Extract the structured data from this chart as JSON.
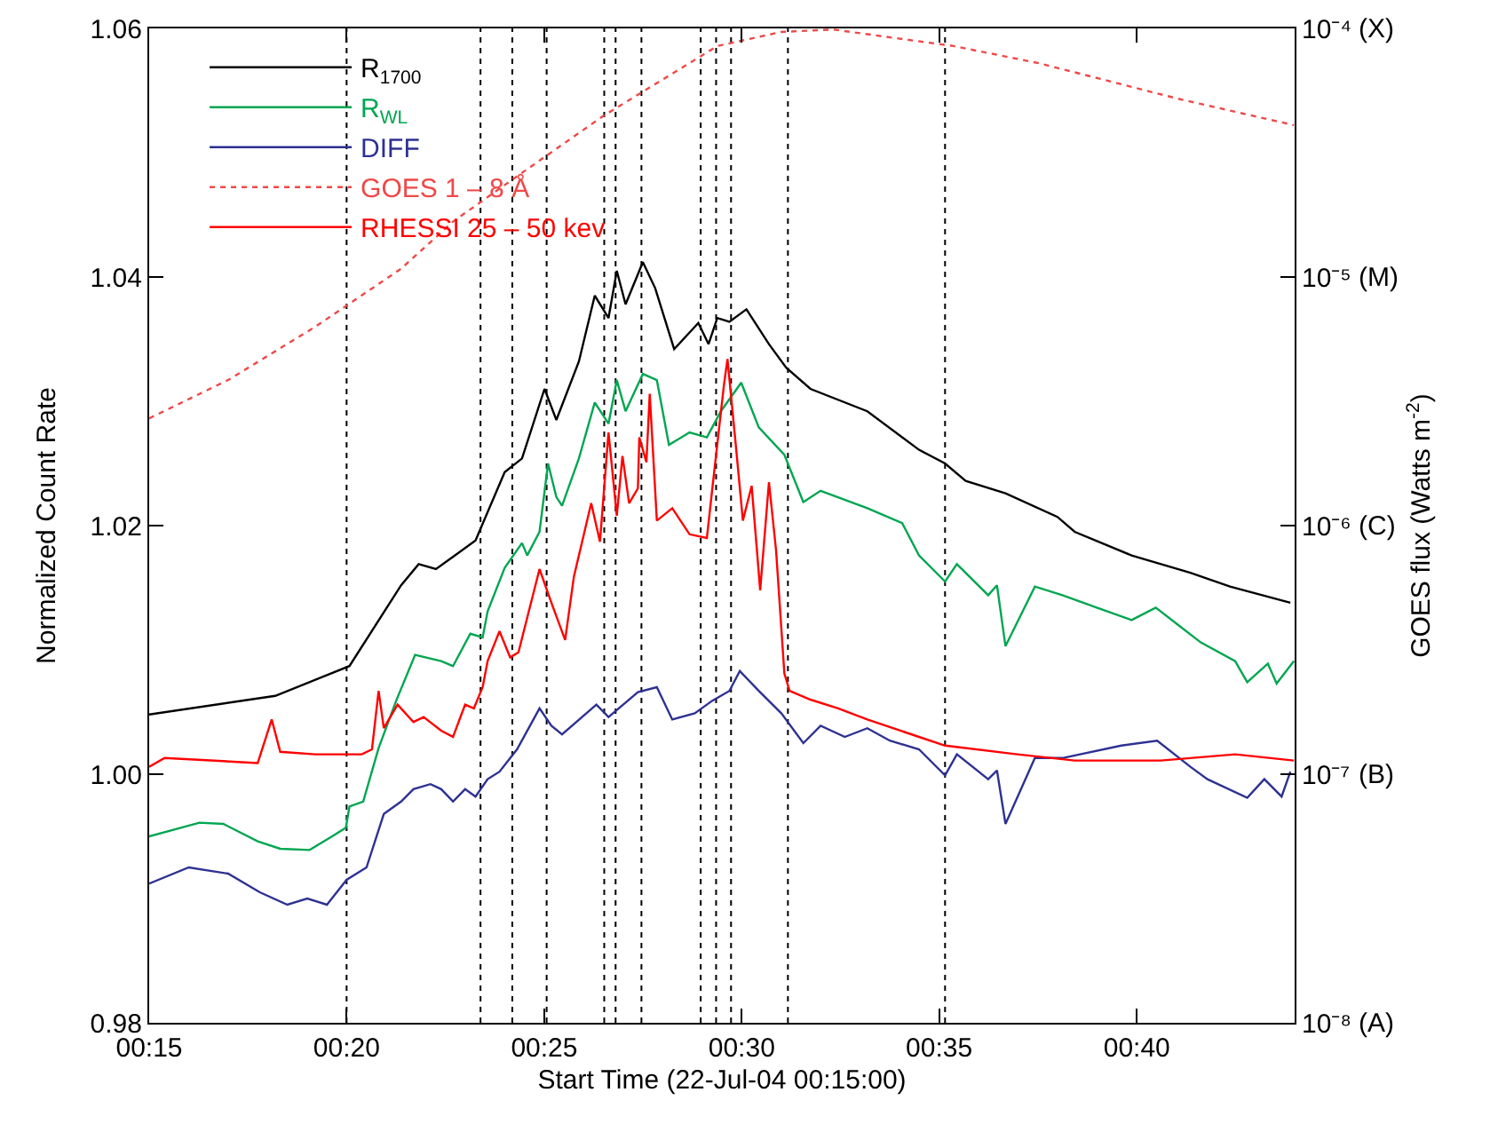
{
  "chart_data": {
    "type": "line",
    "xlabel": "Start Time (22-Jul-04 00:15:00)",
    "ylabel": "Normalized Count Rate",
    "y2label": "GOES flux (Watts m$^{-2}$)",
    "xlim": [
      0.25,
      0.7333
    ],
    "xticks": [
      {
        "value": 0.25,
        "label": "00:15"
      },
      {
        "value": 0.3333,
        "label": "00:20"
      },
      {
        "value": 0.4167,
        "label": "00:25"
      },
      {
        "value": 0.5,
        "label": "00:30"
      },
      {
        "value": 0.5833,
        "label": "00:35"
      },
      {
        "value": 0.6667,
        "label": "00:40"
      }
    ],
    "ylim": [
      0.98,
      1.06
    ],
    "yticks": [
      0.98,
      {
        "value": 1.0,
        "label": "1.00"
      },
      1.02,
      1.04,
      1.06
    ],
    "y2lim": [
      1e-08,
      0.0001
    ],
    "y2ticks": [
      {
        "value": 1e-08,
        "label": "10⁻⁸"
      },
      {
        "value": 1e-07,
        "label": "10⁻⁷"
      },
      {
        "value": 1e-06,
        "label": "10⁻⁶"
      },
      {
        "value": 1e-05,
        "label": "10⁻⁵"
      },
      {
        "value": 0.0001,
        "label": "10⁻⁴"
      }
    ],
    "annotations": [
      "(A)",
      "(B)",
      "(C)",
      "(M)",
      "(X)"
    ],
    "log": "y2",
    "grid": false,
    "legend": "top left",
    "marker": "none",
    "series": [
      {
        "name": "R$_{1700}$",
        "color": "#000000",
        "line_style": "solid",
        "x": [
          0.25,
          0.3032,
          0.3345,
          0.3563,
          0.3637,
          0.371,
          0.3877,
          0.4,
          0.4073,
          0.4168,
          0.4218,
          0.4313,
          0.438,
          0.4438,
          0.4473,
          0.451,
          0.4583,
          0.4635,
          0.4715,
          0.4817,
          0.486,
          0.4897,
          0.4948,
          0.502,
          0.5115,
          0.5188,
          0.529,
          0.553,
          0.5748,
          0.5858,
          0.5945,
          0.6113,
          0.6332,
          0.6405,
          0.6645,
          0.6893,
          0.706,
          0.7315
        ],
        "values": [
          1.0048,
          1.0063,
          1.0087,
          1.0152,
          1.0169,
          1.0165,
          1.0188,
          1.0243,
          1.0254,
          1.031,
          1.0285,
          1.0332,
          1.0385,
          1.0367,
          1.0405,
          1.0378,
          1.0412,
          1.0391,
          1.0342,
          1.0363,
          1.0346,
          1.0367,
          1.0364,
          1.0374,
          1.0346,
          1.0327,
          1.031,
          1.0292,
          1.0261,
          1.025,
          1.0236,
          1.0226,
          1.0207,
          1.0195,
          1.0176,
          1.0162,
          1.0151,
          1.0138
        ]
      },
      {
        "name": "R$_{WL}$",
        "color": "#00a651",
        "line_style": "solid",
        "x": [
          0.25,
          0.2712,
          0.2813,
          0.2958,
          0.3053,
          0.3177,
          0.3272,
          0.333,
          0.3345,
          0.3403,
          0.3468,
          0.3542,
          0.3622,
          0.3732,
          0.3782,
          0.3855,
          0.3907,
          0.3928,
          0.4,
          0.4073,
          0.4095,
          0.4147,
          0.4183,
          0.4218,
          0.4242,
          0.4313,
          0.438,
          0.4438,
          0.4473,
          0.451,
          0.4583,
          0.4642,
          0.4693,
          0.478,
          0.4853,
          0.4912,
          0.4998,
          0.5072,
          0.518,
          0.526,
          0.5333,
          0.553,
          0.5677,
          0.5748,
          0.5858,
          0.5908,
          0.604,
          0.6077,
          0.6113,
          0.6237,
          0.6353,
          0.6498,
          0.6645,
          0.6747,
          0.6842,
          0.6937,
          0.7082,
          0.7133,
          0.722,
          0.7257,
          0.733
        ],
        "values": [
          0.995,
          0.9961,
          0.996,
          0.9946,
          0.994,
          0.9939,
          0.995,
          0.9957,
          0.9974,
          0.9978,
          1.0021,
          1.0059,
          1.0096,
          1.0091,
          1.0087,
          1.0113,
          1.011,
          1.0131,
          1.0166,
          1.0186,
          1.0176,
          1.0195,
          1.025,
          1.0223,
          1.0216,
          1.0254,
          1.0299,
          1.0282,
          1.0317,
          1.0292,
          1.0322,
          1.0317,
          1.0265,
          1.0275,
          1.0271,
          1.0292,
          1.0315,
          1.0279,
          1.0257,
          1.0219,
          1.0228,
          1.0214,
          1.0202,
          1.0176,
          1.0155,
          1.0169,
          1.0144,
          1.0152,
          1.0103,
          1.0151,
          1.0144,
          1.0134,
          1.0124,
          1.0134,
          1.012,
          1.0106,
          1.0091,
          1.0074,
          1.0089,
          1.0073,
          1.0091
        ]
      },
      {
        "name": "DIFF",
        "color": "#2e3192",
        "line_style": "solid",
        "x": [
          0.25,
          0.2667,
          0.2833,
          0.2967,
          0.3083,
          0.3167,
          0.325,
          0.3333,
          0.3417,
          0.349,
          0.3563,
          0.3615,
          0.3687,
          0.3732,
          0.3782,
          0.3833,
          0.3877,
          0.3928,
          0.3978,
          0.4052,
          0.4147,
          0.4197,
          0.4242,
          0.4387,
          0.4438,
          0.4562,
          0.4642,
          0.4707,
          0.4802,
          0.4875,
          0.4948,
          0.4992,
          0.5072,
          0.5167,
          0.526,
          0.5333,
          0.5435,
          0.553,
          0.5625,
          0.5748,
          0.5858,
          0.5908,
          0.604,
          0.6077,
          0.6113,
          0.6237,
          0.6353,
          0.6602,
          0.6753,
          0.6893,
          0.6965,
          0.7133,
          0.7205,
          0.7278,
          0.7315
        ],
        "values": [
          0.9912,
          0.9925,
          0.992,
          0.9905,
          0.9895,
          0.99,
          0.9895,
          0.9915,
          0.9925,
          0.9968,
          0.9978,
          0.9988,
          0.9992,
          0.9988,
          0.9978,
          0.9988,
          0.9982,
          0.9996,
          1.0002,
          1.002,
          1.0053,
          1.0039,
          1.0032,
          1.0056,
          1.0046,
          1.0066,
          1.007,
          1.0044,
          1.0049,
          1.0059,
          1.0067,
          1.0083,
          1.0067,
          1.0049,
          1.0025,
          1.0039,
          1.003,
          1.0037,
          1.0027,
          1.002,
          0.9999,
          1.0016,
          0.9996,
          1.0003,
          0.996,
          1.0013,
          1.0013,
          1.0023,
          1.0027,
          1.0006,
          0.9996,
          0.9981,
          0.9996,
          0.9982,
          1.0002
        ]
      },
      {
        "name": "GOES 1 – 8 Å",
        "color": "#f04848",
        "line_style": "dotted",
        "axis": "y2",
        "x": [
          0.25,
          0.2835,
          0.32,
          0.3563,
          0.3782,
          0.4023,
          0.4415,
          0.4897,
          0.5167,
          0.5385,
          0.5895,
          0.6258,
          0.6842,
          0.733
        ],
        "values": [
          2.7e-06,
          3.86e-06,
          6.3e-06,
          1.08e-05,
          1.67e-05,
          2.43e-05,
          4.44e-05,
          8.49e-05,
          9.68e-05,
          9.9e-05,
          8.49e-05,
          7.23e-05,
          5.21e-05,
          4.08e-05
        ]
      },
      {
        "name": "RHESSI 25 – 50 kev",
        "color": "#ff0000",
        "line_style": "solid",
        "x": [
          0.25,
          0.2565,
          0.2958,
          0.3017,
          0.3053,
          0.32,
          0.3397,
          0.344,
          0.3468,
          0.349,
          0.3548,
          0.3615,
          0.3658,
          0.3732,
          0.3782,
          0.3833,
          0.387,
          0.3907,
          0.3928,
          0.3978,
          0.4023,
          0.4058,
          0.4147,
          0.4197,
          0.4255,
          0.4292,
          0.4365,
          0.4402,
          0.4438,
          0.4473,
          0.4497,
          0.4525,
          0.4562,
          0.4568,
          0.4598,
          0.4612,
          0.4642,
          0.4707,
          0.478,
          0.4853,
          0.4875,
          0.4925,
          0.494,
          0.4977,
          0.5005,
          0.5042,
          0.5078,
          0.5115,
          0.5145,
          0.518,
          0.5202,
          0.529,
          0.5407,
          0.553,
          0.5748,
          0.5858,
          0.6163,
          0.6405,
          0.6768,
          0.7082,
          0.733
        ],
        "values": [
          1.0006,
          1.0013,
          1.0009,
          1.0044,
          1.0018,
          1.0016,
          1.0016,
          1.002,
          1.0067,
          1.0037,
          1.0056,
          1.0042,
          1.0046,
          1.0035,
          1.003,
          1.0056,
          1.0053,
          1.007,
          1.0091,
          1.0115,
          1.0094,
          1.0098,
          1.0165,
          1.0138,
          1.0108,
          1.0159,
          1.0218,
          1.0187,
          1.0275,
          1.0208,
          1.0256,
          1.0218,
          1.023,
          1.0271,
          1.0251,
          1.0306,
          1.0204,
          1.0214,
          1.0193,
          1.019,
          1.0228,
          1.0313,
          1.0334,
          1.0261,
          1.0204,
          1.0232,
          1.0148,
          1.0235,
          1.018,
          1.0081,
          1.0067,
          1.006,
          1.0053,
          1.0044,
          1.003,
          1.0023,
          1.0016,
          1.0011,
          1.0011,
          1.0016,
          1.0011
        ]
      }
    ],
    "ref_lines": [
      {
        "axis": "x",
        "value": 0.3333,
        "line_style": "dotted",
        "color": "#000000"
      },
      {
        "axis": "x",
        "value": 0.3898,
        "line_style": "dotted",
        "color": "#000000"
      },
      {
        "axis": "x",
        "value": 0.4032,
        "line_style": "dotted",
        "color": "#000000"
      },
      {
        "axis": "x",
        "value": 0.4177,
        "line_style": "dotted",
        "color": "#000000"
      },
      {
        "axis": "x",
        "value": 0.442,
        "line_style": "dotted",
        "color": "#000000"
      },
      {
        "axis": "x",
        "value": 0.4468,
        "line_style": "dotted",
        "color": "#000000"
      },
      {
        "axis": "x",
        "value": 0.4577,
        "line_style": "dotted",
        "color": "#000000"
      },
      {
        "axis": "x",
        "value": 0.4827,
        "line_style": "dotted",
        "color": "#000000"
      },
      {
        "axis": "x",
        "value": 0.4892,
        "line_style": "dotted",
        "color": "#000000"
      },
      {
        "axis": "x",
        "value": 0.4955,
        "line_style": "dotted",
        "color": "#000000"
      },
      {
        "axis": "x",
        "value": 0.5195,
        "line_style": "dotted",
        "color": "#000000"
      },
      {
        "axis": "x",
        "value": 0.5858,
        "line_style": "dotted",
        "color": "#000000"
      }
    ]
  }
}
